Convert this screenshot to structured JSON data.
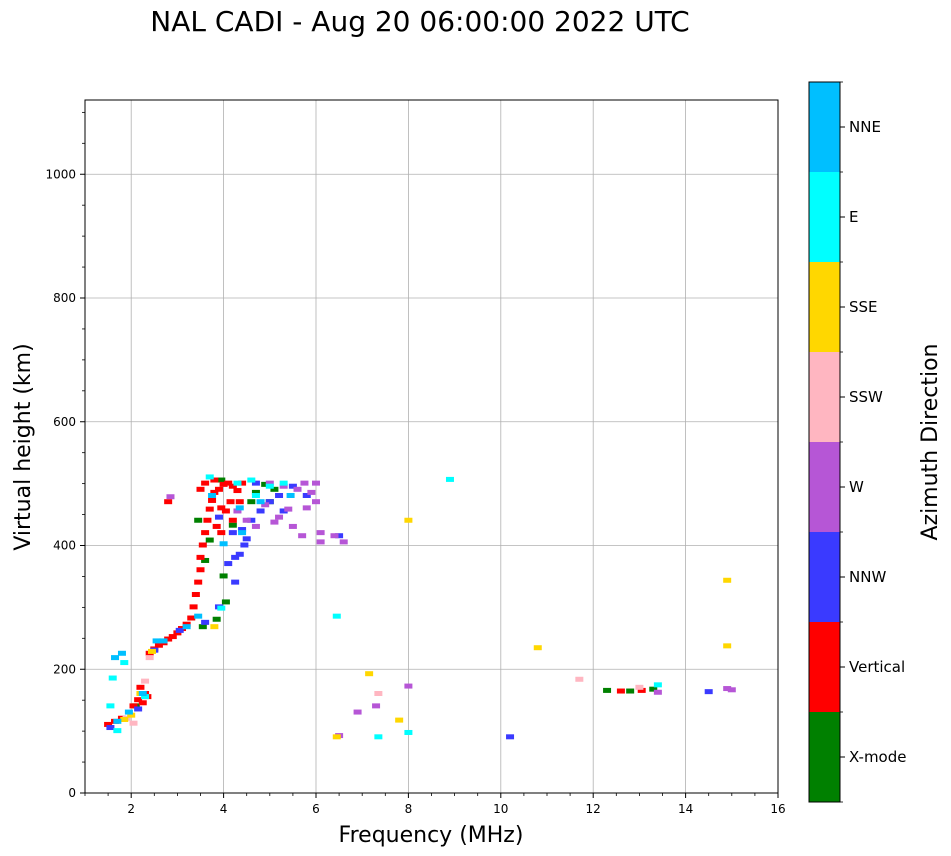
{
  "chart_data": {
    "type": "scatter",
    "title": "NAL CADI - Aug 20 06:00:00 2022 UTC",
    "xlabel": "Frequency (MHz)",
    "ylabel": "Virtual height (km)",
    "xlim": [
      1,
      16
    ],
    "ylim": [
      0,
      1120
    ],
    "xticks": [
      2,
      4,
      6,
      8,
      10,
      12,
      14,
      16
    ],
    "yticks": [
      0,
      200,
      400,
      600,
      800,
      1000
    ],
    "grid": true,
    "colorbar": {
      "label": "Azimuth Direction",
      "categories": [
        "X-mode",
        "Vertical",
        "NNW",
        "W",
        "SSW",
        "SSE",
        "E",
        "NNE"
      ],
      "colors": [
        "#008000",
        "#ff0000",
        "#3a3aff",
        "#b656d6",
        "#ffb6c1",
        "#ffd700",
        "#00ffff",
        "#00bfff"
      ]
    },
    "series": [
      {
        "name": "X-mode",
        "color": "#008000",
        "points": [
          [
            4.05,
            308
          ],
          [
            3.55,
            268
          ],
          [
            4.9,
            498
          ],
          [
            5.1,
            490
          ],
          [
            4.7,
            485
          ],
          [
            4.6,
            470
          ],
          [
            5.0,
            470
          ],
          [
            4.2,
            432
          ],
          [
            3.7,
            408
          ],
          [
            3.45,
            440
          ],
          [
            4.0,
            350
          ],
          [
            3.85,
            280
          ],
          [
            12.3,
            165
          ],
          [
            12.8,
            164
          ],
          [
            13.3,
            167
          ],
          [
            3.95,
            505
          ],
          [
            2.1,
            140
          ],
          [
            3.6,
            375
          ]
        ]
      },
      {
        "name": "Vertical",
        "color": "#ff0000",
        "points": [
          [
            1.5,
            110
          ],
          [
            1.65,
            115
          ],
          [
            1.8,
            120
          ],
          [
            2.05,
            140
          ],
          [
            2.15,
            150
          ],
          [
            2.25,
            145
          ],
          [
            2.35,
            155
          ],
          [
            2.4,
            225
          ],
          [
            2.5,
            232
          ],
          [
            2.6,
            238
          ],
          [
            2.7,
            242
          ],
          [
            2.8,
            248
          ],
          [
            2.9,
            252
          ],
          [
            3.0,
            258
          ],
          [
            3.1,
            265
          ],
          [
            3.2,
            272
          ],
          [
            3.3,
            282
          ],
          [
            3.35,
            300
          ],
          [
            3.4,
            320
          ],
          [
            3.45,
            340
          ],
          [
            3.5,
            360
          ],
          [
            3.5,
            380
          ],
          [
            3.55,
            400
          ],
          [
            3.6,
            420
          ],
          [
            3.65,
            440
          ],
          [
            3.7,
            458
          ],
          [
            3.75,
            472
          ],
          [
            3.8,
            485
          ],
          [
            3.9,
            490
          ],
          [
            4.0,
            498
          ],
          [
            4.1,
            500
          ],
          [
            4.2,
            495
          ],
          [
            4.3,
            488
          ],
          [
            3.85,
            430
          ],
          [
            3.95,
            420
          ],
          [
            4.05,
            455
          ],
          [
            4.15,
            470
          ],
          [
            4.2,
            440
          ],
          [
            3.6,
            500
          ],
          [
            3.8,
            505
          ],
          [
            4.4,
            500
          ],
          [
            2.3,
            160
          ],
          [
            2.2,
            170
          ],
          [
            12.6,
            164
          ],
          [
            13.05,
            165
          ],
          [
            3.95,
            460
          ],
          [
            3.5,
            490
          ],
          [
            4.35,
            470
          ],
          [
            2.8,
            470
          ]
        ]
      },
      {
        "name": "NNW",
        "color": "#3a3aff",
        "points": [
          [
            2.15,
            135
          ],
          [
            2.5,
            230
          ],
          [
            3.05,
            262
          ],
          [
            3.6,
            275
          ],
          [
            3.9,
            300
          ],
          [
            4.25,
            340
          ],
          [
            4.35,
            385
          ],
          [
            4.45,
            400
          ],
          [
            4.5,
            410
          ],
          [
            4.4,
            425
          ],
          [
            4.6,
            440
          ],
          [
            4.8,
            455
          ],
          [
            5.0,
            470
          ],
          [
            5.2,
            480
          ],
          [
            4.2,
            420
          ],
          [
            4.7,
            500
          ],
          [
            5.5,
            495
          ],
          [
            5.8,
            480
          ],
          [
            6.5,
            415
          ],
          [
            10.2,
            90
          ],
          [
            14.5,
            163
          ],
          [
            4.1,
            370
          ],
          [
            3.9,
            445
          ],
          [
            4.25,
            380
          ],
          [
            5.3,
            455
          ],
          [
            1.55,
            105
          ]
        ]
      },
      {
        "name": "W",
        "color": "#b656d6",
        "points": [
          [
            4.9,
            465
          ],
          [
            5.2,
            445
          ],
          [
            5.5,
            430
          ],
          [
            5.7,
            415
          ],
          [
            6.1,
            420
          ],
          [
            6.1,
            405
          ],
          [
            6.4,
            415
          ],
          [
            6.6,
            405
          ],
          [
            5.0,
            500
          ],
          [
            5.3,
            495
          ],
          [
            5.6,
            490
          ],
          [
            5.9,
            485
          ],
          [
            6.0,
            470
          ],
          [
            6.0,
            500
          ],
          [
            5.4,
            458
          ],
          [
            5.1,
            437
          ],
          [
            4.7,
            430
          ],
          [
            4.5,
            440
          ],
          [
            5.8,
            460
          ],
          [
            6.5,
            92
          ],
          [
            6.9,
            130
          ],
          [
            7.3,
            140
          ],
          [
            8.0,
            172
          ],
          [
            15.0,
            166
          ],
          [
            14.9,
            168
          ],
          [
            2.85,
            478
          ],
          [
            13.4,
            162
          ],
          [
            4.3,
            455
          ],
          [
            5.75,
            500
          ]
        ]
      },
      {
        "name": "SSW",
        "color": "#ffb6c1",
        "points": [
          [
            1.9,
            120
          ],
          [
            2.05,
            112
          ],
          [
            2.3,
            180
          ],
          [
            7.35,
            160
          ],
          [
            11.7,
            183
          ],
          [
            13.0,
            170
          ],
          [
            2.4,
            218
          ]
        ]
      },
      {
        "name": "SSE",
        "color": "#ffd700",
        "points": [
          [
            1.85,
            118
          ],
          [
            2.0,
            125
          ],
          [
            2.45,
            228
          ],
          [
            3.8,
            268
          ],
          [
            7.15,
            192
          ],
          [
            7.8,
            117
          ],
          [
            8.0,
            440
          ],
          [
            10.8,
            234
          ],
          [
            14.9,
            343
          ],
          [
            14.9,
            237
          ],
          [
            6.45,
            90
          ],
          [
            2.2,
            160
          ]
        ]
      },
      {
        "name": "E",
        "color": "#00ffff",
        "points": [
          [
            1.55,
            140
          ],
          [
            1.85,
            210
          ],
          [
            2.3,
            155
          ],
          [
            3.95,
            298
          ],
          [
            4.3,
            500
          ],
          [
            4.7,
            480
          ],
          [
            5.0,
            495
          ],
          [
            5.3,
            500
          ],
          [
            6.45,
            285
          ],
          [
            7.35,
            90
          ],
          [
            8.0,
            97
          ],
          [
            8.9,
            506
          ],
          [
            13.4,
            174
          ],
          [
            1.6,
            185
          ],
          [
            1.7,
            100
          ],
          [
            4.6,
            505
          ],
          [
            3.7,
            510
          ]
        ]
      },
      {
        "name": "NNE",
        "color": "#00bfff",
        "points": [
          [
            1.7,
            115
          ],
          [
            1.95,
            130
          ],
          [
            2.25,
            160
          ],
          [
            2.7,
            245
          ],
          [
            3.2,
            268
          ],
          [
            4.0,
            402
          ],
          [
            4.4,
            420
          ],
          [
            4.8,
            470
          ],
          [
            3.75,
            480
          ],
          [
            4.35,
            460
          ],
          [
            5.45,
            480
          ],
          [
            2.55,
            245
          ],
          [
            3.45,
            285
          ],
          [
            1.8,
            225
          ],
          [
            1.65,
            218
          ]
        ]
      }
    ]
  }
}
